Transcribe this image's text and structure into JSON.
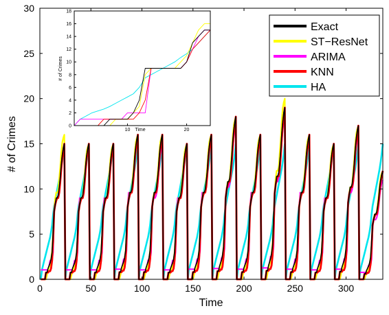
{
  "chart_data": {
    "type": "line",
    "xlabel": "Time",
    "ylabel": "# of Crimes",
    "xlim": [
      0,
      336
    ],
    "ylim": [
      0,
      30
    ],
    "xticks": [
      0,
      50,
      100,
      150,
      200,
      250,
      300
    ],
    "yticks": [
      0,
      5,
      10,
      15,
      20,
      25,
      30
    ],
    "legend_position": "top-right",
    "series": [
      {
        "name": "Exact",
        "color": "#000000"
      },
      {
        "name": "ST−ResNet",
        "color": "#ffff00"
      },
      {
        "name": "ARIMA",
        "color": "#ff00ff"
      },
      {
        "name": "KNN",
        "color": "#ff0000"
      },
      {
        "name": "HA",
        "color": "#00e5ee"
      }
    ],
    "cycle_peaks": {
      "x": [
        24,
        48,
        72,
        96,
        120,
        144,
        168,
        192,
        216,
        240,
        264,
        288,
        312,
        336
      ],
      "Exact": [
        15,
        15,
        15,
        16,
        16,
        15,
        16,
        18,
        16,
        19,
        16,
        15,
        17,
        12
      ],
      "ST−ResNet": [
        16,
        15,
        15,
        16,
        16,
        15,
        16,
        18,
        16,
        20,
        16,
        15,
        17,
        12
      ],
      "ARIMA": [
        15,
        15,
        15,
        16,
        15,
        15,
        16,
        17,
        16,
        18,
        16,
        15,
        16,
        11
      ],
      "KNN": [
        15,
        15,
        15,
        16,
        16,
        15,
        16,
        18,
        16,
        19,
        16,
        15,
        17,
        12
      ],
      "HA": [
        15,
        15,
        15,
        15,
        15,
        15,
        15,
        15,
        15,
        15,
        15,
        15,
        15,
        15
      ]
    },
    "inset": {
      "xlabel": "Time",
      "ylabel": "# of Crimes",
      "xlim": [
        1,
        24
      ],
      "ylim": [
        0,
        18
      ],
      "xticks": [
        10,
        20
      ],
      "yticks": [
        0,
        2,
        4,
        6,
        8,
        10,
        12,
        14,
        16,
        18
      ],
      "x": [
        1,
        2,
        3,
        4,
        5,
        6,
        7,
        8,
        9,
        10,
        11,
        12,
        13,
        14,
        15,
        16,
        17,
        18,
        19,
        20,
        21,
        22,
        23,
        24
      ],
      "Exact": [
        0,
        0,
        0,
        0,
        0,
        0,
        1,
        1,
        1,
        1,
        2,
        4,
        9,
        9,
        9,
        9,
        9,
        9,
        9,
        10,
        13,
        14,
        15,
        15
      ],
      "ST−ResNet": [
        0,
        0,
        0,
        0,
        0,
        0,
        0,
        1,
        1,
        1,
        2,
        3,
        8,
        9,
        9,
        9,
        9,
        9,
        10,
        11,
        13,
        15,
        16,
        16
      ],
      "ARIMA": [
        0,
        1,
        1,
        1,
        1,
        1,
        1,
        1,
        1,
        2,
        2,
        2,
        2,
        9,
        9,
        9,
        9,
        9,
        9,
        10,
        12,
        14,
        15,
        15
      ],
      "KNN": [
        0,
        0,
        0,
        0,
        0,
        1,
        1,
        1,
        1,
        1,
        1,
        2,
        4,
        9,
        9,
        9,
        9,
        9,
        9,
        10,
        12,
        13,
        14,
        15
      ],
      "HA": [
        0,
        1,
        1.5,
        2,
        2.3,
        2.6,
        3,
        3.5,
        4,
        4.5,
        5,
        6,
        7.5,
        8,
        8.5,
        9,
        9.5,
        10,
        10.7,
        11.3,
        12,
        13,
        14,
        15
      ]
    }
  }
}
